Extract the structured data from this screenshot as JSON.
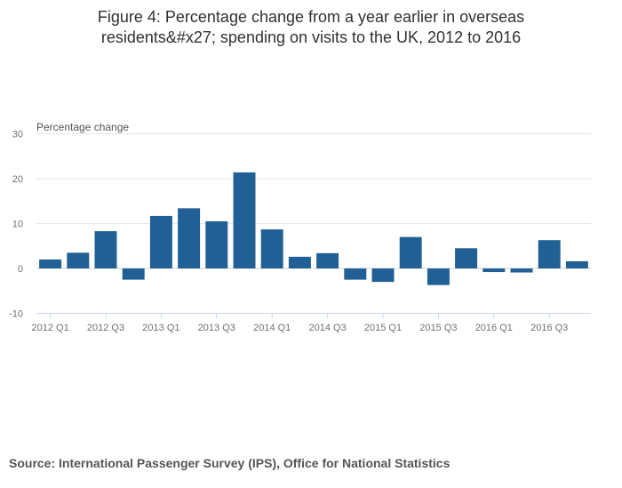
{
  "chart_data": {
    "type": "bar",
    "title_lines": [
      "Figure 4: Percentage change from a year earlier in overseas",
      "residents&#x27; spending on visits to the UK, 2012 to 2016"
    ],
    "ylabel": "Percentage change",
    "ylim": [
      -10,
      30
    ],
    "yticks": [
      30,
      20,
      10,
      0,
      -10
    ],
    "grid": true,
    "categories": [
      "2012 Q1",
      "2012 Q2",
      "2012 Q3",
      "2012 Q4",
      "2013 Q1",
      "2013 Q2",
      "2013 Q3",
      "2013 Q4",
      "2014 Q1",
      "2014 Q2",
      "2014 Q3",
      "2014 Q4",
      "2015 Q1",
      "2015 Q2",
      "2015 Q3",
      "2015 Q4",
      "2016 Q1",
      "2016 Q2",
      "2016 Q3",
      "2016 Q4"
    ],
    "tick_labels": [
      "2012 Q1",
      "",
      "2012 Q3",
      "",
      "2013 Q1",
      "",
      "2013 Q3",
      "",
      "2014 Q1",
      "",
      "2014 Q3",
      "",
      "2015 Q1",
      "",
      "2015 Q3",
      "",
      "2016 Q1",
      "",
      "2016 Q3",
      ""
    ],
    "series": [
      {
        "name": "Percentage change",
        "color": "#206095",
        "values": [
          2,
          3.5,
          8.3,
          -2.5,
          11.7,
          13.4,
          10.5,
          21.4,
          8.7,
          2.6,
          3.4,
          -2.5,
          -3,
          7,
          -3.7,
          4.5,
          -0.8,
          -0.9,
          6.3,
          1.6
        ]
      }
    ]
  },
  "source": "Source: International Passenger Survey (IPS), Office for National Statistics"
}
